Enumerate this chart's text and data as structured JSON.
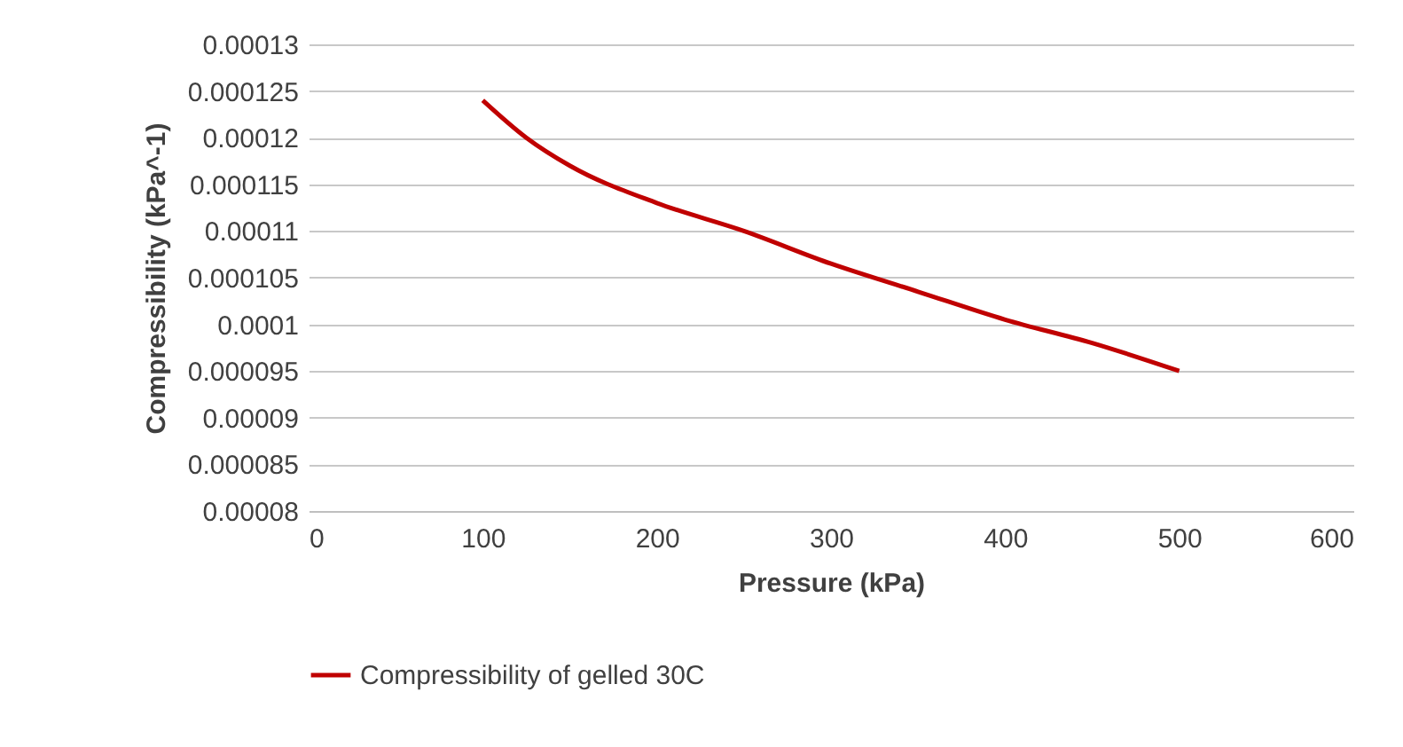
{
  "chart_data": {
    "type": "line",
    "xlabel": "Pressure (kPa)",
    "ylabel": "Compressibility (kPa^-1)",
    "x": [
      100,
      125,
      150,
      200,
      250,
      300,
      350,
      400,
      450,
      500
    ],
    "series": [
      {
        "name": "Compressibility of gelled 30C",
        "color": "#c00000",
        "values": [
          0.000124,
          0.00012,
          0.000117,
          0.000113,
          0.00011,
          0.0001065,
          0.0001035,
          0.0001005,
          9.8e-05,
          9.5e-05
        ]
      }
    ],
    "xlim": [
      0,
      600
    ],
    "xticks": [
      0,
      100,
      200,
      300,
      400,
      500,
      600
    ],
    "ylim": [
      8e-05,
      0.00013
    ],
    "yticks": [
      {
        "value": 8e-05,
        "label": "0.00008"
      },
      {
        "value": 8.5e-05,
        "label": "0.000085"
      },
      {
        "value": 9e-05,
        "label": "0.00009"
      },
      {
        "value": 9.5e-05,
        "label": "0.000095"
      },
      0.0001,
      0.000105,
      0.00011,
      0.000115,
      0.00012,
      0.000125,
      0.00013
    ],
    "grid": "y",
    "legend": "bottom",
    "marker": "none",
    "line_style": "solid"
  }
}
